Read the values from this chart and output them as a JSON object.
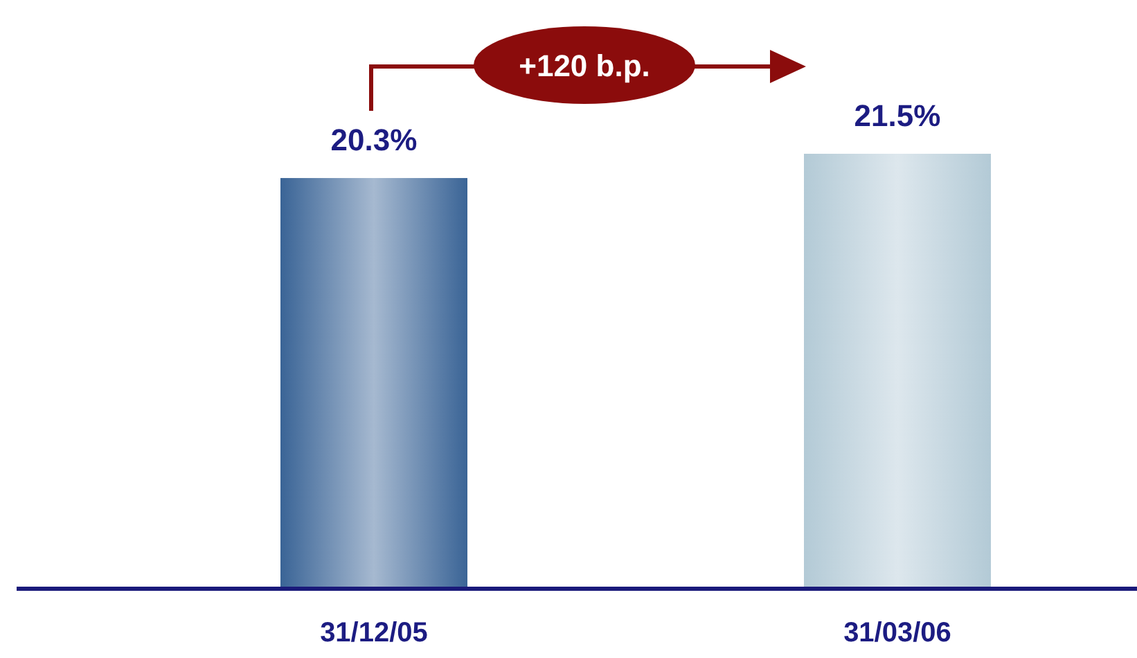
{
  "chart_data": {
    "type": "bar",
    "categories": [
      "31/12/05",
      "31/03/06"
    ],
    "values": [
      20.3,
      21.5
    ],
    "value_labels": [
      "20.3%",
      "21.5%"
    ],
    "colors": [
      "#3a6496",
      "#b3cad6"
    ],
    "tick_labels": "x",
    "annotations": [
      "+120 b.p."
    ]
  }
}
